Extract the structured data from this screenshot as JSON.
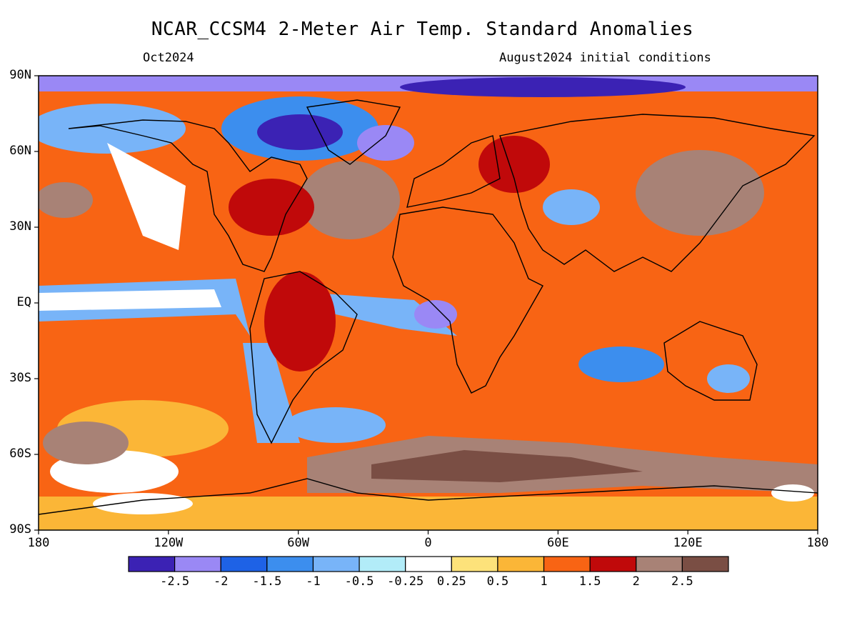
{
  "header": {
    "title": "NCAR_CCSM4 2-Meter Air Temp. Standard Anomalies",
    "valid_month": "Oct2024",
    "init_note": "August2024 initial conditions"
  },
  "map": {
    "projection": "equirectangular",
    "lon_range": [
      -180,
      180
    ],
    "lat_range": [
      -90,
      90
    ],
    "lat_labels": [
      {
        "lat": 90,
        "label": "90N"
      },
      {
        "lat": 60,
        "label": "60N"
      },
      {
        "lat": 30,
        "label": "30N"
      },
      {
        "lat": 0,
        "label": "EQ"
      },
      {
        "lat": -30,
        "label": "30S"
      },
      {
        "lat": -60,
        "label": "60S"
      },
      {
        "lat": -90,
        "label": "90S"
      }
    ],
    "lon_labels": [
      {
        "lon": -180,
        "label": "180"
      },
      {
        "lon": -120,
        "label": "120W"
      },
      {
        "lon": -60,
        "label": "60W"
      },
      {
        "lon": 0,
        "label": "0"
      },
      {
        "lon": 60,
        "label": "60E"
      },
      {
        "lon": 120,
        "label": "120E"
      },
      {
        "lon": 180,
        "label": "180"
      }
    ]
  },
  "colorbar": {
    "colors": [
      "#3b22b4",
      "#9a88f5",
      "#1e62e6",
      "#3c8eee",
      "#78b4f8",
      "#b2ecf8",
      "#ffffff",
      "#fde27a",
      "#fbb637",
      "#f86414",
      "#c0090a",
      "#a88276",
      "#7a4e44"
    ],
    "labels": [
      "-2.5",
      "-2",
      "-1.5",
      "-1",
      "-0.5",
      "-0.25",
      "0.25",
      "0.5",
      "1",
      "1.5",
      "2",
      "2.5"
    ]
  }
}
